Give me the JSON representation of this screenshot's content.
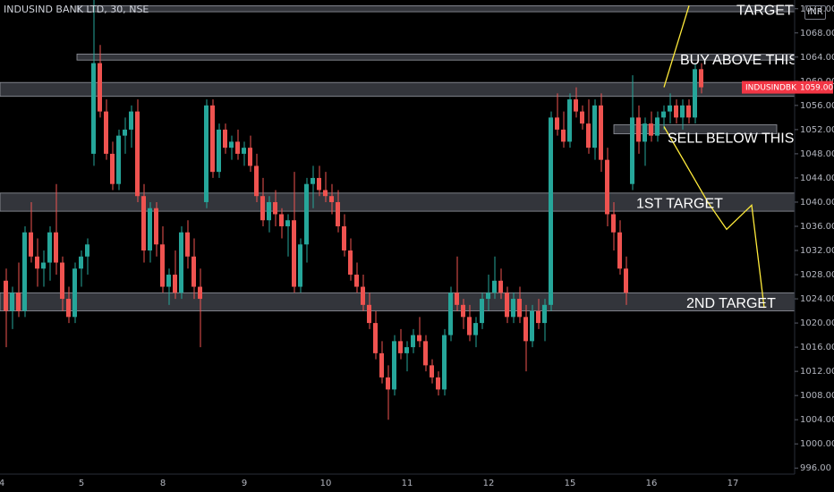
{
  "symbol_label": "INDUSIND BANK LTD, 30, NSE",
  "currency": "INR",
  "price_badge": {
    "label": "INDUSINDBK",
    "value": "1059.00",
    "color": "#f23645"
  },
  "colors": {
    "up": "#26a69a",
    "down": "#ef5350",
    "zone": "#5d606b",
    "arrow": "#ffeb3b",
    "text": "#ffffff"
  },
  "chart_data": {
    "type": "candlestick",
    "x_ticks": [
      "4",
      "5",
      "8",
      "9",
      "10",
      "11",
      "12",
      "15",
      "16",
      "17"
    ],
    "y_ticks": [
      "996.00",
      "1000.00",
      "1004.00",
      "1008.00",
      "1012.00",
      "1016.00",
      "1020.00",
      "1024.00",
      "1028.00",
      "1032.00",
      "1036.00",
      "1040.00",
      "1044.00",
      "1048.00",
      "1052.00",
      "1056.00",
      "1060.00",
      "1064.00",
      "1068.00",
      "1072.00"
    ],
    "y_range": [
      995.0,
      1073.0
    ],
    "zones": [
      {
        "name": "target",
        "from": 1071.5,
        "to": 1072.5
      },
      {
        "name": "resistance",
        "from": 1063.5,
        "to": 1064.5
      },
      {
        "name": "upper",
        "from": 1057.5,
        "to": 1059.8
      },
      {
        "name": "support",
        "from": 1051.3,
        "to": 1052.8
      },
      {
        "name": "first-target",
        "from": 1038.5,
        "to": 1041.5
      },
      {
        "name": "second-target",
        "from": 1022.0,
        "to": 1025.0
      }
    ],
    "annotations": [
      {
        "text": "TARGET",
        "x_slot": 117,
        "y": 1071.0
      },
      {
        "text": "BUY ABOVE THIS RESIS",
        "x_slot": 108,
        "y": 1062.8
      },
      {
        "text": "SELL BELOW THIS SUPPO",
        "x_slot": 106,
        "y": 1049.8
      },
      {
        "text": "1ST TARGET",
        "x_slot": 101,
        "y": 1039.0
      },
      {
        "text": "2ND TARGET",
        "x_slot": 109,
        "y": 1022.5
      }
    ],
    "arrows": [
      {
        "points": [
          [
            105,
            1059.0
          ],
          [
            109,
            1072.5
          ]
        ]
      },
      {
        "points": [
          [
            105,
            1052.5
          ],
          [
            112,
            1040.0
          ],
          [
            115,
            1035.5
          ],
          [
            119,
            1039.5
          ],
          [
            121,
            1022.5
          ]
        ]
      }
    ],
    "candles": [
      {
        "o": 1027,
        "h": 1029,
        "l": 1016,
        "c": 1022
      },
      {
        "o": 1022,
        "h": 1026,
        "l": 1019,
        "c": 1025
      },
      {
        "o": 1025,
        "h": 1030,
        "l": 1021,
        "c": 1022
      },
      {
        "o": 1022,
        "h": 1036,
        "l": 1021,
        "c": 1035
      },
      {
        "o": 1035,
        "h": 1040,
        "l": 1030,
        "c": 1031
      },
      {
        "o": 1031,
        "h": 1034,
        "l": 1026,
        "c": 1029
      },
      {
        "o": 1029,
        "h": 1032,
        "l": 1026,
        "c": 1030
      },
      {
        "o": 1030,
        "h": 1036,
        "l": 1027,
        "c": 1035
      },
      {
        "o": 1035,
        "h": 1043,
        "l": 1028,
        "c": 1030
      },
      {
        "o": 1030,
        "h": 1031,
        "l": 1022,
        "c": 1024
      },
      {
        "o": 1024,
        "h": 1026,
        "l": 1020,
        "c": 1021
      },
      {
        "o": 1021,
        "h": 1030,
        "l": 1020,
        "c": 1029
      },
      {
        "o": 1029,
        "h": 1032,
        "l": 1026,
        "c": 1031
      },
      {
        "o": 1031,
        "h": 1034,
        "l": 1028,
        "c": 1033
      },
      {
        "o": 1048,
        "h": 1075,
        "l": 1046,
        "c": 1063
      },
      {
        "o": 1063,
        "h": 1066,
        "l": 1054,
        "c": 1055
      },
      {
        "o": 1055,
        "h": 1057,
        "l": 1047,
        "c": 1048
      },
      {
        "o": 1048,
        "h": 1050,
        "l": 1042,
        "c": 1043
      },
      {
        "o": 1043,
        "h": 1052,
        "l": 1042,
        "c": 1051
      },
      {
        "o": 1051,
        "h": 1054,
        "l": 1048,
        "c": 1052
      },
      {
        "o": 1052,
        "h": 1056,
        "l": 1049,
        "c": 1055
      },
      {
        "o": 1055,
        "h": 1057,
        "l": 1040,
        "c": 1041
      },
      {
        "o": 1041,
        "h": 1043,
        "l": 1030,
        "c": 1032
      },
      {
        "o": 1032,
        "h": 1040,
        "l": 1030,
        "c": 1039
      },
      {
        "o": 1039,
        "h": 1040,
        "l": 1031,
        "c": 1033
      },
      {
        "o": 1033,
        "h": 1036,
        "l": 1025,
        "c": 1026
      },
      {
        "o": 1026,
        "h": 1029,
        "l": 1023,
        "c": 1028
      },
      {
        "o": 1028,
        "h": 1032,
        "l": 1024,
        "c": 1025
      },
      {
        "o": 1025,
        "h": 1036,
        "l": 1024,
        "c": 1035
      },
      {
        "o": 1035,
        "h": 1037,
        "l": 1029,
        "c": 1031
      },
      {
        "o": 1031,
        "h": 1034,
        "l": 1024,
        "c": 1026
      },
      {
        "o": 1026,
        "h": 1029,
        "l": 1016,
        "c": 1024
      },
      {
        "o": 1040,
        "h": 1057,
        "l": 1039,
        "c": 1056
      },
      {
        "o": 1056,
        "h": 1057,
        "l": 1044,
        "c": 1045
      },
      {
        "o": 1045,
        "h": 1053,
        "l": 1044,
        "c": 1052
      },
      {
        "o": 1052,
        "h": 1053,
        "l": 1048,
        "c": 1049
      },
      {
        "o": 1049,
        "h": 1051,
        "l": 1047,
        "c": 1050
      },
      {
        "o": 1050,
        "h": 1052,
        "l": 1047,
        "c": 1048
      },
      {
        "o": 1048,
        "h": 1050,
        "l": 1046,
        "c": 1049
      },
      {
        "o": 1049,
        "h": 1051,
        "l": 1045,
        "c": 1046
      },
      {
        "o": 1046,
        "h": 1048,
        "l": 1040,
        "c": 1041
      },
      {
        "o": 1041,
        "h": 1044,
        "l": 1036,
        "c": 1037
      },
      {
        "o": 1037,
        "h": 1041,
        "l": 1035,
        "c": 1040
      },
      {
        "o": 1040,
        "h": 1042,
        "l": 1036,
        "c": 1038
      },
      {
        "o": 1038,
        "h": 1039,
        "l": 1034,
        "c": 1036
      },
      {
        "o": 1036,
        "h": 1038,
        "l": 1031,
        "c": 1037
      },
      {
        "o": 1037,
        "h": 1045,
        "l": 1025,
        "c": 1026
      },
      {
        "o": 1026,
        "h": 1034,
        "l": 1025,
        "c": 1033
      },
      {
        "o": 1033,
        "h": 1044,
        "l": 1030,
        "c": 1043
      },
      {
        "o": 1043,
        "h": 1046,
        "l": 1039,
        "c": 1044
      },
      {
        "o": 1044,
        "h": 1046,
        "l": 1041,
        "c": 1042
      },
      {
        "o": 1042,
        "h": 1045,
        "l": 1040,
        "c": 1041
      },
      {
        "o": 1041,
        "h": 1043,
        "l": 1038,
        "c": 1040
      },
      {
        "o": 1040,
        "h": 1042,
        "l": 1035,
        "c": 1036
      },
      {
        "o": 1036,
        "h": 1038,
        "l": 1031,
        "c": 1032
      },
      {
        "o": 1032,
        "h": 1034,
        "l": 1027,
        "c": 1028
      },
      {
        "o": 1028,
        "h": 1030,
        "l": 1025,
        "c": 1026
      },
      {
        "o": 1026,
        "h": 1028,
        "l": 1022,
        "c": 1023
      },
      {
        "o": 1023,
        "h": 1025,
        "l": 1019,
        "c": 1020
      },
      {
        "o": 1020,
        "h": 1022,
        "l": 1014,
        "c": 1015
      },
      {
        "o": 1015,
        "h": 1017,
        "l": 1010,
        "c": 1011
      },
      {
        "o": 1011,
        "h": 1013,
        "l": 1004,
        "c": 1009
      },
      {
        "o": 1009,
        "h": 1018,
        "l": 1008,
        "c": 1017
      },
      {
        "o": 1017,
        "h": 1019,
        "l": 1014,
        "c": 1015
      },
      {
        "o": 1015,
        "h": 1017,
        "l": 1012,
        "c": 1016
      },
      {
        "o": 1016,
        "h": 1019,
        "l": 1015,
        "c": 1018
      },
      {
        "o": 1018,
        "h": 1021,
        "l": 1016,
        "c": 1017
      },
      {
        "o": 1017,
        "h": 1018,
        "l": 1012,
        "c": 1013
      },
      {
        "o": 1013,
        "h": 1014,
        "l": 1010,
        "c": 1011
      },
      {
        "o": 1011,
        "h": 1012,
        "l": 1008,
        "c": 1009
      },
      {
        "o": 1009,
        "h": 1019,
        "l": 1008,
        "c": 1018
      },
      {
        "o": 1018,
        "h": 1026,
        "l": 1017,
        "c": 1025
      },
      {
        "o": 1025,
        "h": 1031,
        "l": 1022,
        "c": 1023
      },
      {
        "o": 1023,
        "h": 1024,
        "l": 1019,
        "c": 1021
      },
      {
        "o": 1021,
        "h": 1023,
        "l": 1017,
        "c": 1018
      },
      {
        "o": 1018,
        "h": 1021,
        "l": 1016,
        "c": 1020
      },
      {
        "o": 1020,
        "h": 1025,
        "l": 1019,
        "c": 1024
      },
      {
        "o": 1024,
        "h": 1028,
        "l": 1022,
        "c": 1025
      },
      {
        "o": 1025,
        "h": 1031,
        "l": 1024,
        "c": 1027
      },
      {
        "o": 1027,
        "h": 1029,
        "l": 1024,
        "c": 1025
      },
      {
        "o": 1025,
        "h": 1026,
        "l": 1020,
        "c": 1021
      },
      {
        "o": 1021,
        "h": 1025,
        "l": 1020,
        "c": 1024
      },
      {
        "o": 1024,
        "h": 1026,
        "l": 1020,
        "c": 1021
      },
      {
        "o": 1021,
        "h": 1023,
        "l": 1012,
        "c": 1017
      },
      {
        "o": 1017,
        "h": 1023,
        "l": 1016,
        "c": 1022
      },
      {
        "o": 1022,
        "h": 1024,
        "l": 1019,
        "c": 1020
      },
      {
        "o": 1020,
        "h": 1024,
        "l": 1017,
        "c": 1023
      },
      {
        "o": 1023,
        "h": 1055,
        "l": 1022,
        "c": 1054
      },
      {
        "o": 1054,
        "h": 1058,
        "l": 1051,
        "c": 1052
      },
      {
        "o": 1052,
        "h": 1055,
        "l": 1049,
        "c": 1050
      },
      {
        "o": 1050,
        "h": 1058,
        "l": 1049,
        "c": 1057
      },
      {
        "o": 1057,
        "h": 1059,
        "l": 1054,
        "c": 1055
      },
      {
        "o": 1055,
        "h": 1056,
        "l": 1052,
        "c": 1053
      },
      {
        "o": 1053,
        "h": 1057,
        "l": 1048,
        "c": 1049
      },
      {
        "o": 1049,
        "h": 1057,
        "l": 1047,
        "c": 1056
      },
      {
        "o": 1056,
        "h": 1058,
        "l": 1045,
        "c": 1047
      },
      {
        "o": 1047,
        "h": 1049,
        "l": 1036,
        "c": 1038
      },
      {
        "o": 1038,
        "h": 1040,
        "l": 1032,
        "c": 1035
      },
      {
        "o": 1035,
        "h": 1037,
        "l": 1028,
        "c": 1029
      },
      {
        "o": 1029,
        "h": 1031,
        "l": 1023,
        "c": 1025
      },
      {
        "o": 1043,
        "h": 1061,
        "l": 1042,
        "c": 1054
      },
      {
        "o": 1054,
        "h": 1056,
        "l": 1048,
        "c": 1050
      },
      {
        "o": 1050,
        "h": 1054,
        "l": 1046,
        "c": 1053
      },
      {
        "o": 1053,
        "h": 1055,
        "l": 1050,
        "c": 1051
      },
      {
        "o": 1051,
        "h": 1055,
        "l": 1050,
        "c": 1054
      },
      {
        "o": 1054,
        "h": 1056,
        "l": 1052,
        "c": 1055
      },
      {
        "o": 1055,
        "h": 1058,
        "l": 1053,
        "c": 1056
      },
      {
        "o": 1056,
        "h": 1057,
        "l": 1053,
        "c": 1054
      },
      {
        "o": 1054,
        "h": 1057,
        "l": 1052,
        "c": 1056
      },
      {
        "o": 1056,
        "h": 1057,
        "l": 1053,
        "c": 1054
      },
      {
        "o": 1054,
        "h": 1063,
        "l": 1053,
        "c": 1062
      },
      {
        "o": 1062,
        "h": 1063,
        "l": 1058,
        "c": 1059
      }
    ]
  }
}
